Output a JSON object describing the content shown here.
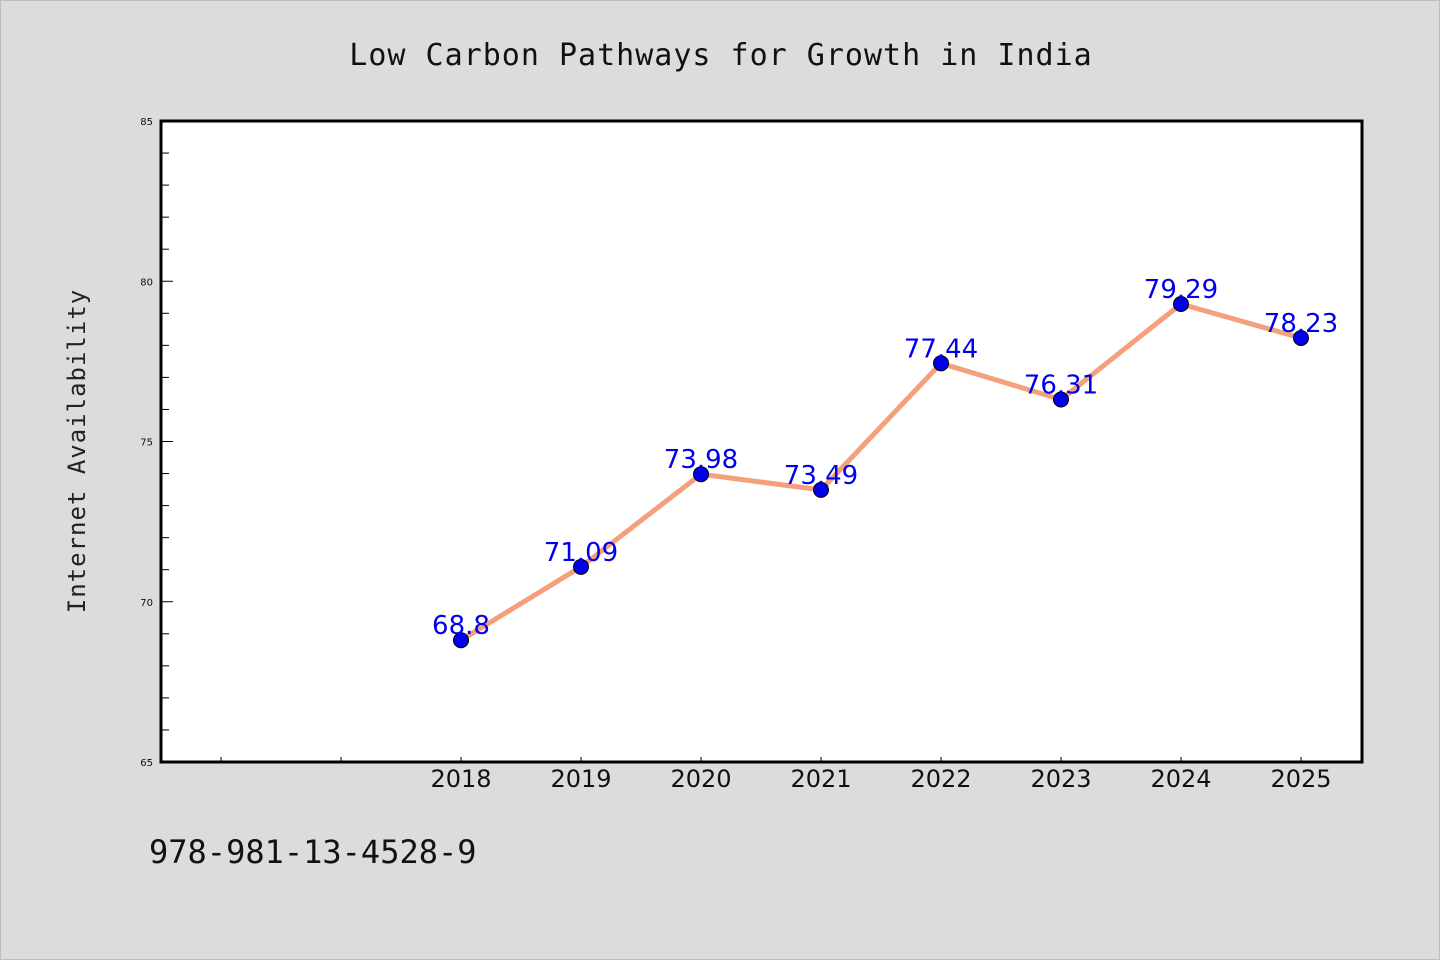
{
  "chart_data": {
    "type": "line",
    "title": "Low Carbon Pathways for Growth in India",
    "xlabel": "",
    "ylabel": "Internet Availability",
    "categories": [
      "2018",
      "2019",
      "2020",
      "2021",
      "2022",
      "2023",
      "2024",
      "2025"
    ],
    "series": [
      {
        "values": [
          68.8,
          71.09,
          73.98,
          73.49,
          77.44,
          76.31,
          79.29,
          78.23
        ],
        "data_labels": [
          "68.8",
          "71.09",
          "73.98",
          "73.49",
          "77.44",
          "76.31",
          "79.29",
          "78.23"
        ]
      }
    ],
    "ylim": [
      65,
      85
    ],
    "yticks": [
      65,
      70,
      75,
      80,
      85
    ],
    "x_axis_extra_leading_slots": 2,
    "grid": false,
    "legend": "none",
    "colors": {
      "line": "#f4a07c",
      "marker": "#0000ee",
      "data_label": "#0000ee",
      "plot_background": "#ffffff",
      "page_background": "#dcdcdc"
    }
  },
  "footer": {
    "code": "978-981-13-4528-9"
  }
}
